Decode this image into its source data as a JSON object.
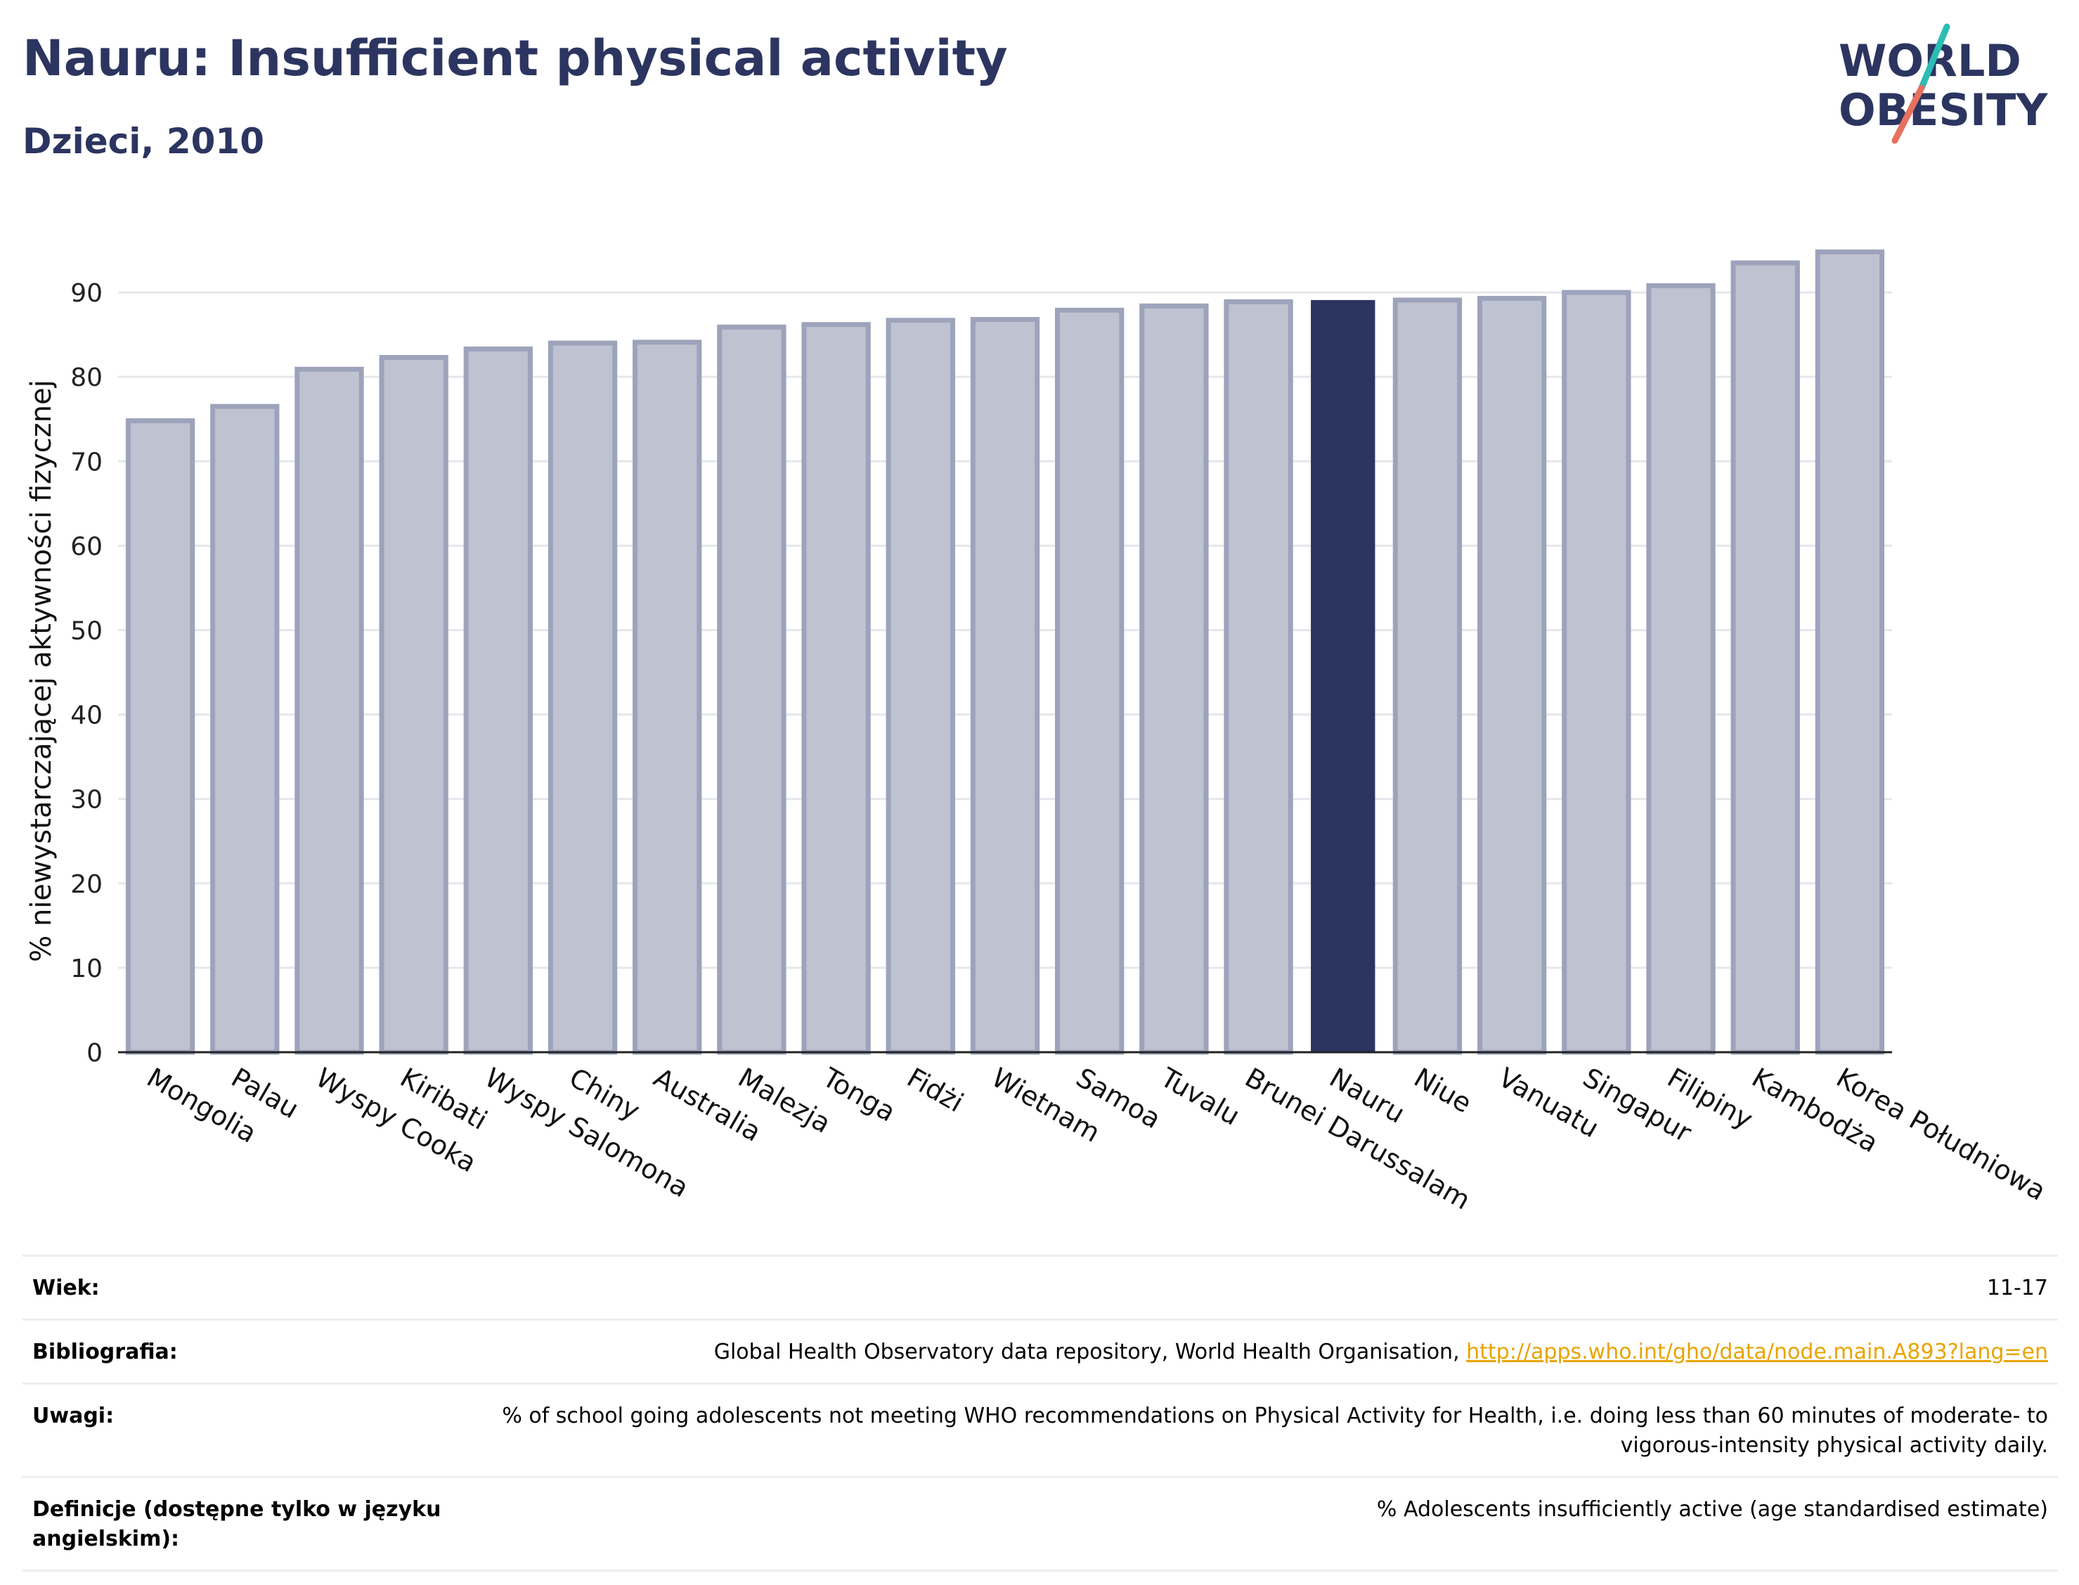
{
  "header": {
    "title": "Nauru: Insufficient physical activity",
    "subtitle": "Dzieci, 2010"
  },
  "logo": {
    "line1": "WORLD",
    "line2": "OBESITY",
    "colors": {
      "text": "#2c3560",
      "teal": "#2bbdb3",
      "coral": "#e8705e"
    }
  },
  "colors": {
    "bar_default": "#bfc2d0",
    "bar_border": "#9da3bb",
    "bar_highlight": "#2b3560",
    "axis": "#222222",
    "grid": "#e6e7ec"
  },
  "chart_data": {
    "type": "bar",
    "title": "Nauru: Insufficient physical activity",
    "subtitle": "Dzieci, 2010",
    "xlabel": "",
    "ylabel": "% niewystarczającej aktywności fizycznej",
    "ylim": [
      0,
      97
    ],
    "yticks": [
      0,
      10,
      20,
      30,
      40,
      50,
      60,
      70,
      80,
      90
    ],
    "grid": true,
    "categories": [
      "Mongolia",
      "Palau",
      "Wyspy Cooka",
      "Kiribati",
      "Wyspy Salomona",
      "Chiny",
      "Australia",
      "Malezja",
      "Tonga",
      "Fidżi",
      "Wietnam",
      "Samoa",
      "Tuvalu",
      "Brunei Darussalam",
      "Nauru",
      "Niue",
      "Vanuatu",
      "Singapur",
      "Filipiny",
      "Kambodża",
      "Korea Południowa"
    ],
    "values": [
      74.8,
      76.5,
      80.9,
      82.3,
      83.3,
      84.0,
      84.1,
      85.9,
      86.2,
      86.7,
      86.8,
      87.9,
      88.4,
      88.9,
      89.1,
      89.1,
      89.3,
      90.0,
      90.8,
      93.5,
      94.8
    ],
    "highlight": "Nauru"
  },
  "meta": {
    "rows": [
      {
        "label": "Wiek:",
        "value": "11-17"
      },
      {
        "label": "Bibliografia:",
        "value": "Global Health Observatory data repository, World Health Organisation, ",
        "link": "http://apps.who.int/gho/data/node.main.A893?lang=en"
      },
      {
        "label": "Uwagi:",
        "value": "% of school going adolescents not meeting WHO recommendations on Physical Activity for Health, i.e. doing less than 60 minutes of moderate- to vigorous-intensity physical activity daily."
      },
      {
        "label": "Definicje (dostępne tylko w języku angielskim):",
        "value": "% Adolescents insufficiently active (age standardised estimate)"
      }
    ]
  }
}
